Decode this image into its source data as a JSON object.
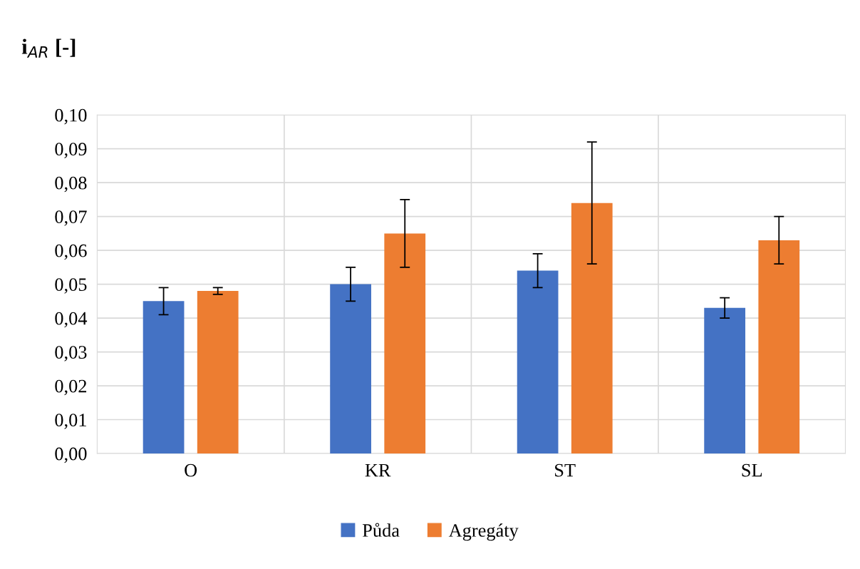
{
  "chart_data": {
    "type": "bar",
    "ylabel": "i$_{AR}$ [-]",
    "categories": [
      "O",
      "KR",
      "ST",
      "SL"
    ],
    "series": [
      {
        "name": "Půda",
        "color": "#4472c4",
        "values": [
          0.045,
          0.05,
          0.054,
          0.043
        ],
        "errors": [
          0.004,
          0.005,
          0.005,
          0.003
        ]
      },
      {
        "name": "Agregáty",
        "color": "#ed7d31",
        "values": [
          0.048,
          0.065,
          0.074,
          0.063
        ],
        "errors": [
          0.001,
          0.01,
          0.018,
          0.007
        ]
      }
    ],
    "ylim": [
      0,
      0.1
    ],
    "yticks": [
      {
        "value": 0,
        "label": "0,00"
      },
      {
        "value": 0.01,
        "label": "0,01"
      },
      {
        "value": 0.02,
        "label": "0,02"
      },
      {
        "value": 0.03,
        "label": "0,03"
      },
      {
        "value": 0.04,
        "label": "0,04"
      },
      {
        "value": 0.05,
        "label": "0,05"
      },
      {
        "value": 0.06,
        "label": "0,06"
      },
      {
        "value": 0.07,
        "label": "0,07"
      },
      {
        "value": 0.08,
        "label": "0,08"
      },
      {
        "value": 0.09,
        "label": "0,09"
      },
      {
        "value": 0.1,
        "label": "0,10"
      }
    ],
    "grid": true,
    "legend": "bottom"
  }
}
